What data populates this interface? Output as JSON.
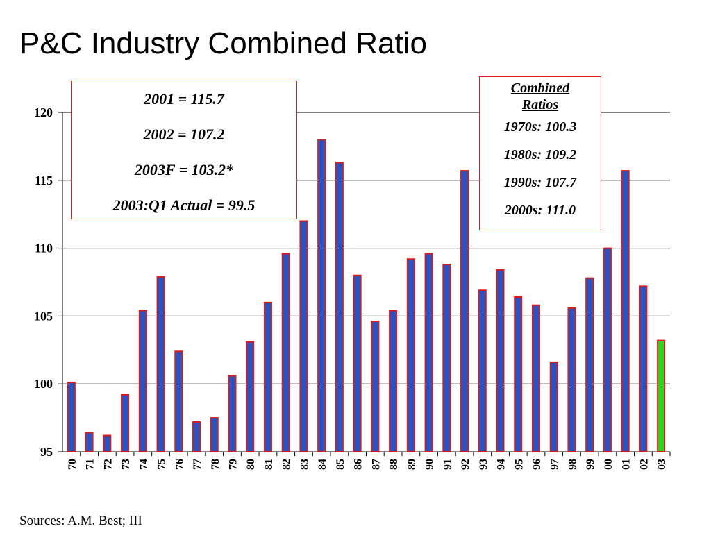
{
  "title": "P&C Industry Combined Ratio",
  "source": "Sources: A.M. Best; III",
  "box_left": [
    "2001 = 115.7",
    "2002 = 107.2",
    "2003F = 103.2*",
    "2003:Q1 Actual = 99.5"
  ],
  "box_right": {
    "heading_line1": "Combined",
    "heading_line2": "Ratios",
    "rows": [
      "1970s: 100.3",
      "1980s: 109.2",
      "1990s: 107.7",
      "2000s: 111.0"
    ]
  },
  "colors": {
    "bar": "#2256c8",
    "bar_border": "#e01818",
    "forecast": "#22dd22",
    "box_border": "#e01818"
  },
  "chart_data": {
    "type": "bar",
    "categories": [
      "70",
      "71",
      "72",
      "73",
      "74",
      "75",
      "76",
      "77",
      "78",
      "79",
      "80",
      "81",
      "82",
      "83",
      "84",
      "85",
      "86",
      "87",
      "88",
      "89",
      "90",
      "91",
      "92",
      "93",
      "94",
      "95",
      "96",
      "97",
      "98",
      "99",
      "00",
      "01",
      "02",
      "03"
    ],
    "values": [
      100.1,
      96.4,
      96.2,
      99.2,
      105.4,
      107.9,
      102.4,
      97.2,
      97.5,
      100.6,
      103.1,
      106.0,
      109.6,
      112.0,
      118.0,
      116.3,
      108.0,
      104.6,
      105.4,
      109.2,
      109.6,
      108.8,
      115.7,
      106.9,
      108.4,
      106.4,
      105.8,
      101.6,
      105.6,
      107.8,
      110.0,
      115.7,
      107.2,
      103.2
    ],
    "forecast_category": "03",
    "ylim": [
      95,
      120
    ],
    "yticks": [
      95,
      100,
      105,
      110,
      115,
      120
    ],
    "grid": true,
    "xlabel": "",
    "ylabel": ""
  }
}
